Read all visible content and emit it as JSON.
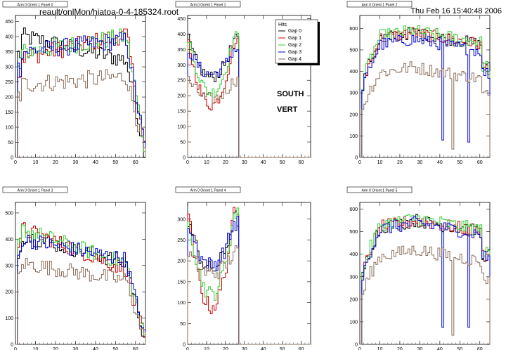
{
  "header": {
    "file_path": "reault/onlMon/hiatoa-0-4-185324.root",
    "timestamp": "Thu Feb 16 15:40:48 2006"
  },
  "annotations": {
    "south": "SOUTH",
    "vert": "VERT"
  },
  "legend": {
    "title": "Hits",
    "entries": [
      "Gap 0",
      "Gap 1",
      "Gap 2",
      "Gap 3",
      "Gap 4"
    ]
  },
  "colors": {
    "gap0": "#000000",
    "gap1": "#cc0000",
    "gap2": "#33cc33",
    "gap3": "#0000cc",
    "gap4": "#8b6e5a",
    "frame": "#000000",
    "title_box": "#ffffff"
  },
  "chart_data": [
    {
      "type": "histogram",
      "title": "Arm 0 Orient 1 Panel 0",
      "xlim": [
        0,
        65
      ],
      "ylim": [
        0,
        470
      ],
      "xticks": [
        0,
        10,
        20,
        30,
        40,
        50,
        60
      ],
      "yticks": [
        0,
        50,
        100,
        150,
        200,
        250,
        300,
        350,
        400,
        450
      ],
      "shape": {
        "kind": "broad",
        "start": 1,
        "end": 64,
        "peak": 10,
        "falloff_start": 55
      },
      "series": [
        {
          "name": "Gap 0",
          "level": 390,
          "slope": -0.6
        },
        {
          "name": "Gap 1",
          "level": 340,
          "slope": 0.6
        },
        {
          "name": "Gap 2",
          "level": 355,
          "slope": 0.4
        },
        {
          "name": "Gap 3",
          "level": 355,
          "slope": 0.3
        },
        {
          "name": "Gap 4",
          "level": 245,
          "slope": 0.2
        }
      ]
    },
    {
      "type": "histogram",
      "title": "Arm 0 Orient 1 Panel 1",
      "xlim": [
        0,
        65
      ],
      "ylim": [
        0,
        460
      ],
      "xticks": [
        0,
        10,
        20,
        30,
        40,
        50,
        60
      ],
      "yticks": [
        0,
        50,
        100,
        150,
        200,
        250,
        300,
        350,
        400,
        450
      ],
      "shape": {
        "kind": "valley",
        "start": 0,
        "end": 26,
        "valley": 12
      },
      "series": [
        {
          "name": "Gap 0",
          "level": 380,
          "low": 260
        },
        {
          "name": "Gap 1",
          "level": 370,
          "low": 170
        },
        {
          "name": "Gap 2",
          "level": 390,
          "low": 210
        },
        {
          "name": "Gap 3",
          "level": 350,
          "low": 270
        },
        {
          "name": "Gap 4",
          "level": 250,
          "low": 190
        }
      ]
    },
    {
      "type": "histogram",
      "title": "Arm 0 Orient 1 Panel 2",
      "xlim": [
        0,
        65
      ],
      "ylim": [
        0,
        660
      ],
      "xticks": [
        0,
        10,
        20,
        30,
        40,
        50,
        60
      ],
      "yticks": [
        0,
        100,
        200,
        300,
        400,
        500,
        600
      ],
      "shape": {
        "kind": "rise",
        "start": 1,
        "end": 64,
        "peak": 26,
        "rise_to": 10
      },
      "series": [
        {
          "name": "Gap 0",
          "level": 580
        },
        {
          "name": "Gap 1",
          "level": 580
        },
        {
          "name": "Gap 2",
          "level": 590
        },
        {
          "name": "Gap 3",
          "level": 550
        },
        {
          "name": "Gap 4",
          "level": 420
        }
      ]
    },
    {
      "type": "histogram",
      "title": "Arm 0 Orient 1 Panel 3",
      "xlim": [
        0,
        65
      ],
      "ylim": [
        0,
        540
      ],
      "xticks": [
        0,
        10,
        20,
        30,
        40,
        50,
        60
      ],
      "yticks": [
        0,
        100,
        200,
        300,
        400,
        500
      ],
      "shape": {
        "kind": "broad",
        "start": 1,
        "end": 64,
        "peak": 10,
        "falloff_start": 55
      },
      "series": [
        {
          "name": "Gap 0",
          "level": 400,
          "slope": -0.8
        },
        {
          "name": "Gap 1",
          "level": 420,
          "slope": -1.2
        },
        {
          "name": "Gap 2",
          "level": 420,
          "slope": -1.0
        },
        {
          "name": "Gap 3",
          "level": 390,
          "slope": -0.6
        },
        {
          "name": "Gap 4",
          "level": 300,
          "slope": -0.5
        }
      ]
    },
    {
      "type": "histogram",
      "title": "Arm 0 Orient 1 Panel 4",
      "xlim": [
        0,
        65
      ],
      "ylim": [
        0,
        340
      ],
      "xticks": [
        0,
        10,
        20,
        30,
        40,
        50,
        60
      ],
      "yticks": [
        0,
        50,
        100,
        150,
        200,
        250,
        300
      ],
      "shape": {
        "kind": "valley",
        "start": 0,
        "end": 26,
        "valley": 12
      },
      "series": [
        {
          "name": "Gap 0",
          "level": 300,
          "low": 180
        },
        {
          "name": "Gap 1",
          "level": 310,
          "low": 90
        },
        {
          "name": "Gap 2",
          "level": 310,
          "low": 120
        },
        {
          "name": "Gap 3",
          "level": 290,
          "low": 190
        },
        {
          "name": "Gap 4",
          "level": 220,
          "low": 170
        }
      ]
    },
    {
      "type": "histogram",
      "title": "Arm 0 Orient 1 Panel 5",
      "xlim": [
        0,
        65
      ],
      "ylim": [
        0,
        630
      ],
      "xticks": [
        0,
        10,
        20,
        30,
        40,
        50,
        60
      ],
      "yticks": [
        0,
        100,
        200,
        300,
        400,
        500,
        600
      ],
      "shape": {
        "kind": "rise",
        "start": 1,
        "end": 64,
        "peak": 28,
        "rise_to": 10
      },
      "series": [
        {
          "name": "Gap 0",
          "level": 550
        },
        {
          "name": "Gap 1",
          "level": 550
        },
        {
          "name": "Gap 2",
          "level": 560
        },
        {
          "name": "Gap 3",
          "level": 540
        },
        {
          "name": "Gap 4",
          "level": 420
        }
      ]
    }
  ]
}
